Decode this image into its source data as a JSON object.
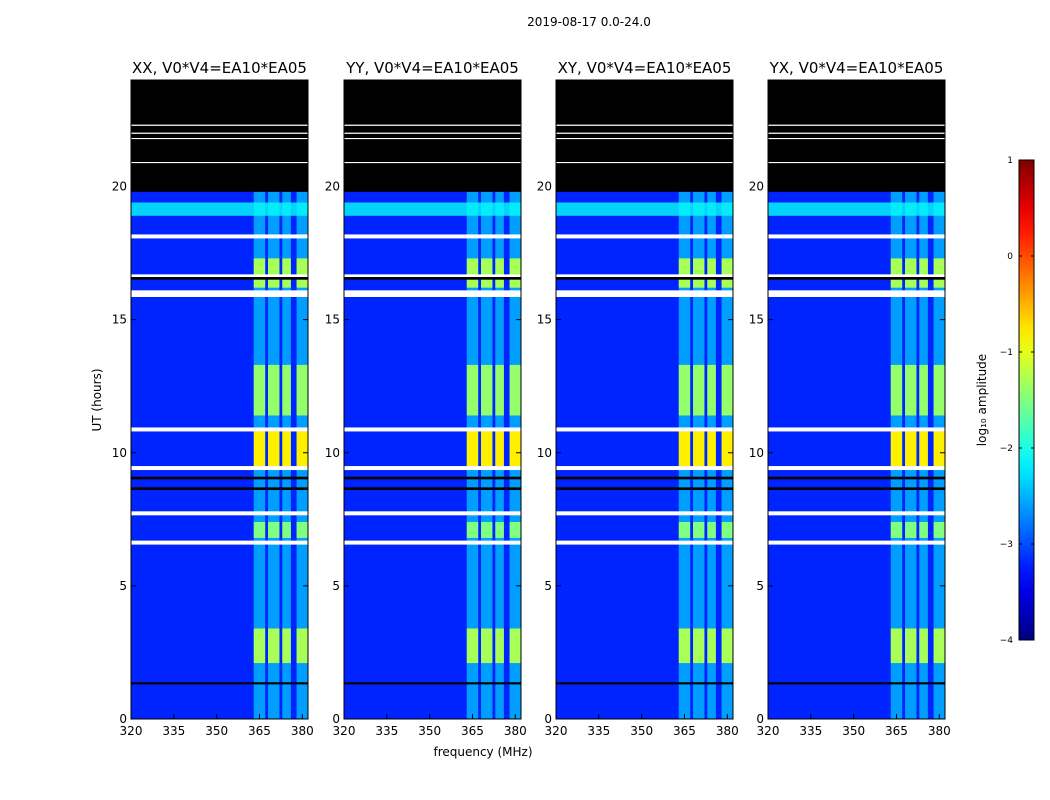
{
  "figure_title": "2019-08-17 0.0-24.0",
  "chart_data": {
    "type": "heatmap",
    "title": "2019-08-17 0.0-24.0",
    "xlabel": "frequency (MHz)",
    "ylabel": "UT (hours)",
    "xlim": [
      320,
      382
    ],
    "ylim": [
      0,
      24
    ],
    "xticks": [
      320,
      335,
      350,
      365,
      380
    ],
    "yticks": [
      0,
      5,
      10,
      15,
      20
    ],
    "panels": [
      {
        "title": "XX, V0*V4=EA10*EA05",
        "polarization": "XX"
      },
      {
        "title": "YY, V0*V4=EA10*EA05",
        "polarization": "YY"
      },
      {
        "title": "XY, V0*V4=EA10*EA05",
        "polarization": "XY"
      },
      {
        "title": "YX, V0*V4=EA10*EA05",
        "polarization": "YX"
      }
    ],
    "colorbar": {
      "label": "log₁₀ amplitude",
      "range": [
        -4,
        1
      ],
      "ticks": [
        -4,
        -3,
        -2,
        -1,
        0,
        1
      ],
      "tick_labels": [
        "−4",
        "−3",
        "−2",
        "−1",
        "0",
        "1"
      ],
      "colormap": "jet"
    },
    "masked_blocks_hours": [
      [
        19.8,
        24.0
      ]
    ],
    "flagged_rows_hours": [
      [
        18.05,
        18.2
      ],
      [
        16.55,
        16.7
      ],
      [
        15.85,
        16.1
      ],
      [
        10.8,
        10.95
      ],
      [
        9.35,
        9.5
      ],
      [
        7.65,
        7.8
      ],
      [
        6.55,
        6.7
      ]
    ],
    "black_rows_hours": [
      [
        16.5,
        16.6
      ],
      [
        9.0,
        9.1
      ],
      [
        8.6,
        8.7
      ],
      [
        1.3,
        1.38
      ]
    ],
    "rfi_bands_mhz": [
      [
        363,
        367
      ],
      [
        368,
        372
      ],
      [
        373,
        376
      ],
      [
        378,
        382
      ]
    ],
    "bright_episodes_hours": [
      {
        "t": [
          16.2,
          17.3
        ],
        "level": -1.3
      },
      {
        "t": [
          9.5,
          10.8
        ],
        "level": -0.8
      },
      {
        "t": [
          11.4,
          13.3
        ],
        "level": -1.4
      },
      {
        "t": [
          6.8,
          7.4
        ],
        "level": -1.5
      },
      {
        "t": [
          2.1,
          3.4
        ],
        "level": -1.3
      }
    ],
    "background_level": -3.2
  }
}
